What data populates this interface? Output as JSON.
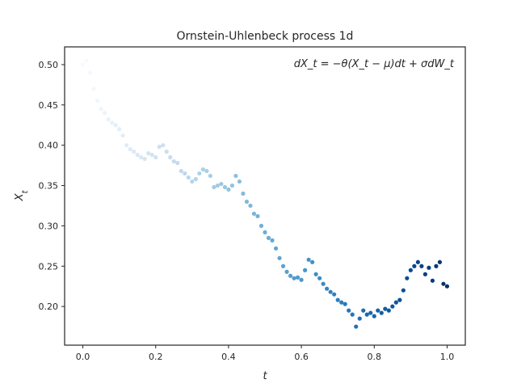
{
  "chart_data": {
    "type": "scatter",
    "title": "Ornstein-Uhlenbeck process 1d",
    "xlabel": "t",
    "ylabel": "X_t",
    "xlim": [
      -0.05,
      1.05
    ],
    "ylim": [
      0.152,
      0.522
    ],
    "xticks": [
      "0.0",
      "0.2",
      "0.4",
      "0.6",
      "0.8",
      "1.0"
    ],
    "yticks": [
      "0.20",
      "0.25",
      "0.30",
      "0.35",
      "0.40",
      "0.45",
      "0.50"
    ],
    "annotation": "dX_t = −θ(X_t − μ)dt + σdW_t",
    "grid": false,
    "colormap": [
      "#f7fbff",
      "#deebf7",
      "#c6dbef",
      "#9ecae1",
      "#6baed6",
      "#4292c6",
      "#2171b5",
      "#08519c",
      "#08306b"
    ],
    "series": [
      {
        "x": [
          0.0,
          0.01,
          0.02,
          0.03,
          0.04,
          0.05,
          0.06,
          0.07,
          0.08,
          0.09,
          0.1,
          0.11,
          0.12,
          0.13,
          0.14,
          0.15,
          0.16,
          0.17,
          0.18,
          0.19,
          0.2,
          0.21,
          0.22,
          0.23,
          0.24,
          0.25,
          0.26,
          0.27,
          0.28,
          0.29,
          0.3,
          0.31,
          0.32,
          0.33,
          0.34,
          0.35,
          0.36,
          0.37,
          0.38,
          0.39,
          0.4,
          0.41,
          0.42,
          0.43,
          0.44,
          0.45,
          0.46,
          0.47,
          0.48,
          0.49,
          0.5,
          0.51,
          0.52,
          0.53,
          0.54,
          0.55,
          0.56,
          0.57,
          0.58,
          0.59,
          0.6,
          0.61,
          0.62,
          0.63,
          0.64,
          0.65,
          0.66,
          0.67,
          0.68,
          0.69,
          0.7,
          0.71,
          0.72,
          0.73,
          0.74,
          0.75,
          0.76,
          0.77,
          0.78,
          0.79,
          0.8,
          0.81,
          0.82,
          0.83,
          0.84,
          0.85,
          0.86,
          0.87,
          0.88,
          0.89,
          0.9,
          0.91,
          0.92,
          0.93,
          0.94,
          0.95,
          0.96,
          0.97,
          0.98,
          0.99,
          1.0
        ],
        "y": [
          0.5,
          0.505,
          0.49,
          0.47,
          0.455,
          0.445,
          0.44,
          0.432,
          0.428,
          0.425,
          0.42,
          0.412,
          0.4,
          0.395,
          0.392,
          0.388,
          0.385,
          0.383,
          0.39,
          0.388,
          0.385,
          0.398,
          0.4,
          0.392,
          0.385,
          0.38,
          0.378,
          0.368,
          0.365,
          0.36,
          0.355,
          0.358,
          0.365,
          0.37,
          0.368,
          0.362,
          0.348,
          0.35,
          0.352,
          0.348,
          0.345,
          0.35,
          0.362,
          0.355,
          0.34,
          0.33,
          0.325,
          0.315,
          0.312,
          0.3,
          0.292,
          0.285,
          0.282,
          0.272,
          0.26,
          0.25,
          0.243,
          0.238,
          0.235,
          0.236,
          0.233,
          0.245,
          0.258,
          0.255,
          0.24,
          0.235,
          0.228,
          0.222,
          0.218,
          0.215,
          0.208,
          0.205,
          0.203,
          0.195,
          0.19,
          0.175,
          0.185,
          0.195,
          0.19,
          0.192,
          0.188,
          0.195,
          0.192,
          0.197,
          0.195,
          0.2,
          0.205,
          0.208,
          0.22,
          0.235,
          0.245,
          0.25,
          0.255,
          0.25,
          0.24,
          0.248,
          0.232,
          0.25,
          0.255,
          0.228,
          0.225
        ]
      }
    ]
  }
}
